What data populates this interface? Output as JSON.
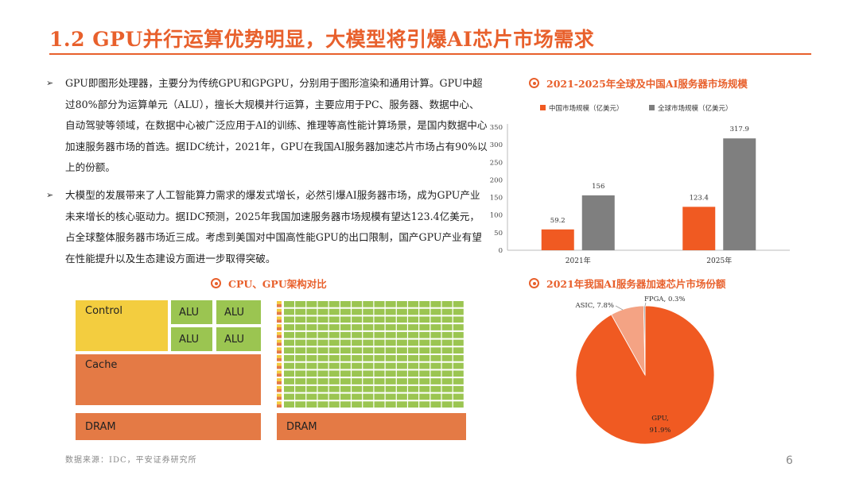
{
  "page": {
    "title": "1.2 GPU并行运算优势明显，大模型将引爆AI芯片市场需求",
    "page_number": "6",
    "source": "数据来源：IDC，平安证券研究所"
  },
  "bullets": [
    {
      "marker": "➢",
      "text": "GPU即图形处理器，主要分为传统GPU和GPGPU，分别用于图形渲染和通用计算。GPU中超过80%部分为运算单元（ALU），擅长大规模并行运算，主要应用于PC、服务器、数据中心、自动驾驶等领域，在数据中心被广泛应用于AI的训练、推理等高性能计算场景，是国内数据中心加速服务器市场的首选。据IDC统计，2021年，GPU在我国AI服务器加速芯片市场占有90%以上的份额。"
    },
    {
      "marker": "➢",
      "text": "大模型的发展带来了人工智能算力需求的爆发式增长，必然引爆AI服务器市场，成为GPU产业未来增长的核心驱动力。据IDC预测，2025年我国加速服务器市场规模有望达123.4亿美元，占全球整体服务器市场近三成。考虑到美国对中国高性能GPU的出口限制，国产GPU产业有望在性能提升以及生态建设方面进一步取得突破。"
    }
  ],
  "sections": {
    "arch_title": "CPU、GPU架构对比",
    "bar_title": "2021-2025年全球及中国AI服务器市场规模",
    "pie_title": "2021年我国AI服务器加速芯片市场份额"
  },
  "architecture": {
    "cpu": {
      "control": "Control",
      "alu": [
        "ALU",
        "ALU",
        "ALU",
        "ALU"
      ],
      "cache": "Cache",
      "dram": "DRAM"
    },
    "gpu": {
      "dram": "DRAM",
      "rows": 14
    },
    "colors": {
      "control": "#f3cd3f",
      "alu": "#9bc551",
      "cache": "#e47a45",
      "dram": "#e47a45"
    }
  },
  "chart_data": [
    {
      "type": "bar",
      "categories": [
        "2021年",
        "2025年"
      ],
      "series": [
        {
          "name": "中国市场规模（亿美元）",
          "values": [
            59.2,
            123.4
          ],
          "color": "#f05a22"
        },
        {
          "name": "全球市场规模（亿美元）",
          "values": [
            156,
            317.9
          ],
          "color": "#7f7f7f"
        }
      ],
      "ylim": [
        0,
        350
      ],
      "yticks": [
        0,
        50,
        100,
        150,
        200,
        250,
        300,
        350
      ],
      "legend": "top-left",
      "grid": false,
      "data_labels": true
    },
    {
      "type": "pie",
      "slices": [
        {
          "label": "GPU",
          "value": 91.9,
          "display": "GPU,",
          "display_pct": "91.9%",
          "color": "#f05a22"
        },
        {
          "label": "ASIC",
          "value": 7.8,
          "display": "ASIC, 7.8%",
          "color": "#f4a384"
        },
        {
          "label": "FPGA",
          "value": 0.3,
          "display": "FPGA, 0.3%",
          "color": "#7f7f7f"
        }
      ]
    }
  ]
}
